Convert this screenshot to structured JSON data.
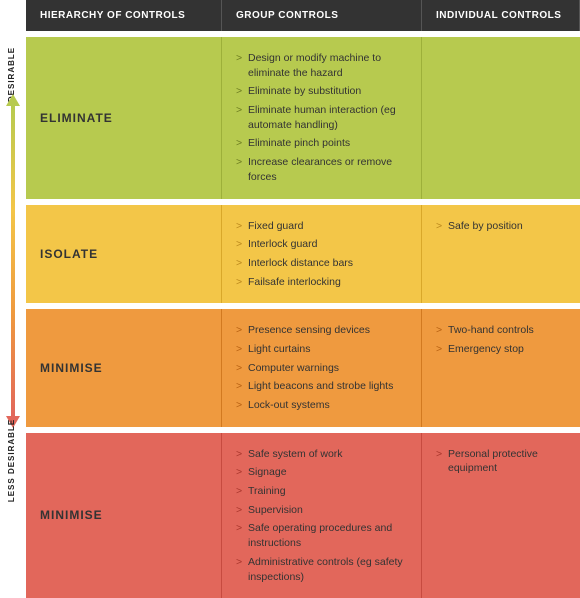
{
  "header": {
    "col1": "HIERARCHY OF CONTROLS",
    "col2": "GROUP CONTROLS",
    "col3": "INDIVIDUAL CONTROLS"
  },
  "side": {
    "top_label": "DESIRABLE",
    "bottom_label": "LESS DESIRABLE"
  },
  "bands": [
    {
      "key": "eliminate",
      "title": "ELIMINATE",
      "color": "#b7ca4f",
      "group": [
        "Design or modify machine to eliminate the hazard",
        "Eliminate by substitution",
        "Eliminate human interaction (eg automate handling)",
        "Eliminate pinch points",
        "Increase clearances or remove forces"
      ],
      "individual": []
    },
    {
      "key": "isolate",
      "title": "ISOLATE",
      "color": "#f3c648",
      "group": [
        "Fixed guard",
        "Interlock guard",
        "Interlock distance bars",
        "Failsafe interlocking"
      ],
      "individual": [
        "Safe by position"
      ]
    },
    {
      "key": "minimise1",
      "title": "MINIMISE",
      "color": "#ef9a3f",
      "group": [
        "Presence sensing devices",
        "Light curtains",
        "Computer warnings",
        "Light beacons and strobe lights",
        "Lock-out systems"
      ],
      "individual": [
        "Two-hand controls",
        "Emergency stop"
      ]
    },
    {
      "key": "minimise2",
      "title": "MINIMISE",
      "color": "#e2675b",
      "group": [
        "Safe system of work",
        "Signage",
        "Training",
        "Supervision",
        "Safe operating procedures and instructions",
        "Administrative controls (eg safety inspections)"
      ],
      "individual": [
        "Personal protective equipment"
      ]
    }
  ]
}
